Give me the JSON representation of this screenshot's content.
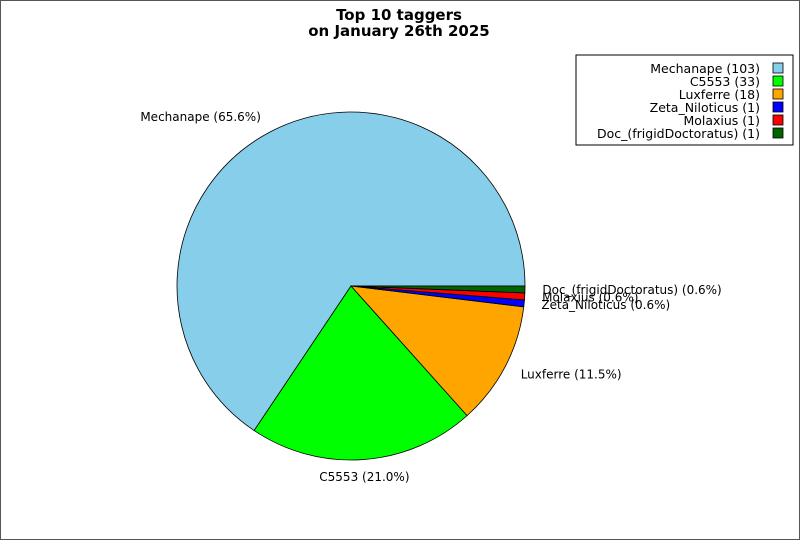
{
  "chart_data": {
    "type": "pie",
    "title_line1": "Top 10 taggers",
    "title_line2": "on January 26th 2025",
    "start_angle_deg": 0,
    "direction": "counterclockwise",
    "legend_position": "top-right",
    "slices": [
      {
        "name": "Mechanape",
        "value": 103,
        "percent_label": "Mechanape (65.6%)",
        "legend_label": "Mechanape (103)",
        "color": "#87ceeb"
      },
      {
        "name": "C5553",
        "value": 33,
        "percent_label": "C5553 (21.0%)",
        "legend_label": "C5553 (33)",
        "color": "#00ff00"
      },
      {
        "name": "Luxferre",
        "value": 18,
        "percent_label": "Luxferre (11.5%)",
        "legend_label": "Luxferre (18)",
        "color": "#ffa500"
      },
      {
        "name": "Zeta_Niloticus",
        "value": 1,
        "percent_label": "Zeta_Niloticus (0.6%)",
        "legend_label": "Zeta_Niloticus (1)",
        "color": "#0000ff"
      },
      {
        "name": "Molaxius",
        "value": 1,
        "percent_label": "Molaxius (0.6%)",
        "legend_label": "Molaxius (1)",
        "color": "#ff0000"
      },
      {
        "name": "Doc_(frigidDoctoratus)",
        "value": 1,
        "percent_label": "Doc_(frigidDoctoratus) (0.6%)",
        "legend_label": "Doc_(frigidDoctoratus) (1)",
        "color": "#006400"
      }
    ]
  }
}
